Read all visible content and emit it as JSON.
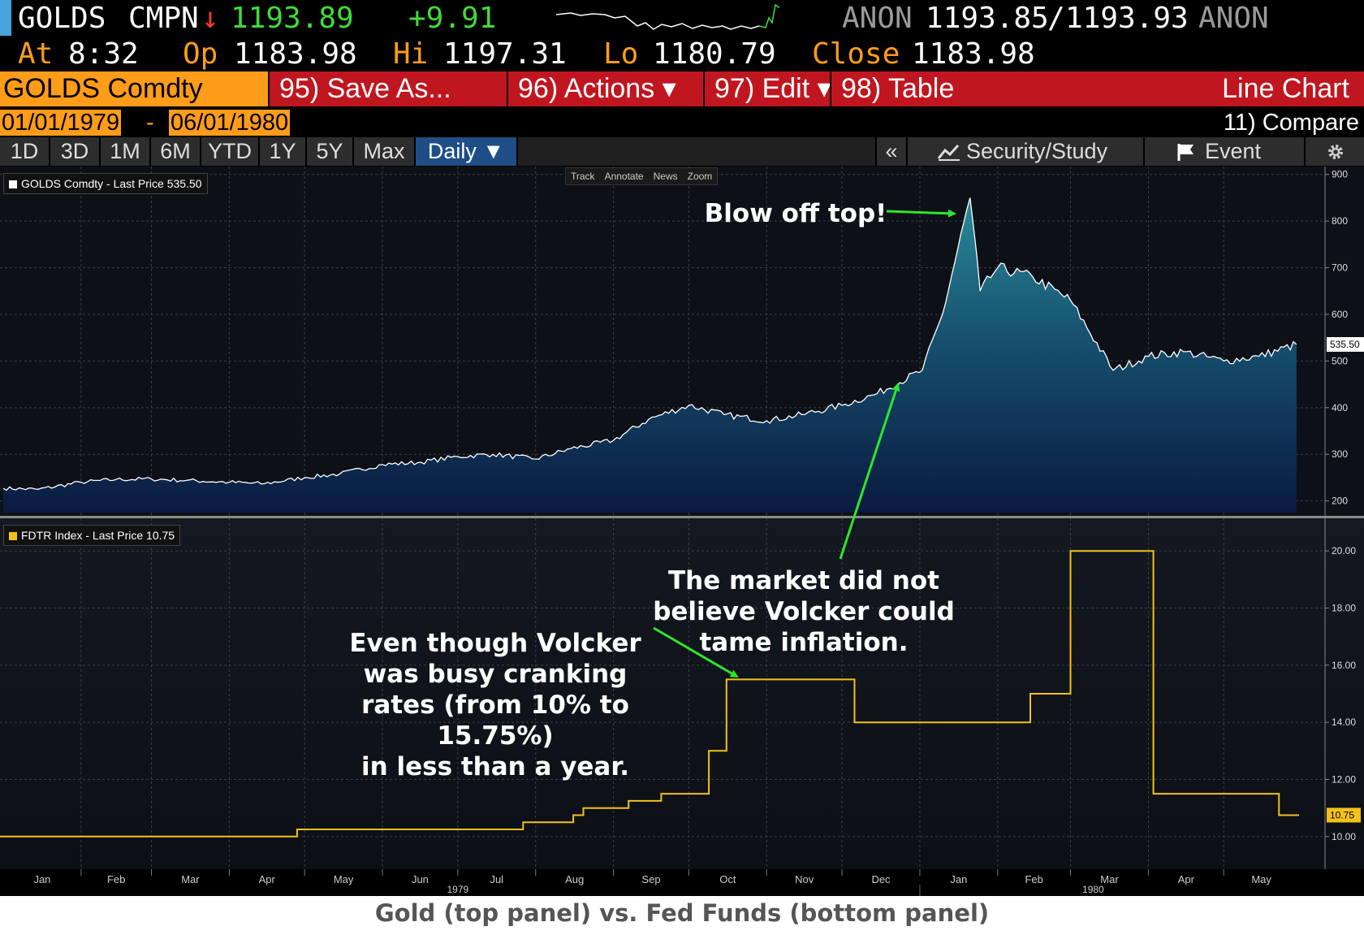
{
  "header": {
    "ticker": "GOLDS",
    "source": "CMPN",
    "arrow": "↓",
    "last": "1193.89",
    "change": "+9.91",
    "bid_label": "ANON",
    "bid": "1193.85",
    "slash": "/",
    "ask": "1193.93",
    "ask_label": "ANON",
    "at_label": "At",
    "time": "8:32",
    "op_label": "Op",
    "op": "1183.98",
    "hi_label": "Hi",
    "hi": "1197.31",
    "lo_label": "Lo",
    "lo": "1180.79",
    "close_label": "Close",
    "close": "1183.98"
  },
  "menu": {
    "security": "GOLDS Comdty",
    "save_as": "95) Save As...",
    "actions": "96) Actions ▾",
    "edit": "97) Edit ▾",
    "table": "98) Table",
    "chart_type": "Line Chart"
  },
  "range": {
    "start": "01/01/1979",
    "dash": "-",
    "end": "06/01/1980",
    "compare": "11) Compare"
  },
  "tabs": [
    "1D",
    "3D",
    "1M",
    "6M",
    "YTD",
    "1Y",
    "5Y",
    "Max"
  ],
  "period": "Daily ▼",
  "right_tabs": {
    "collapse": "«",
    "security_study": "Security/Study",
    "event": "Event",
    "settings_icon": "gear-icon",
    "chart_icon": "chart-icon",
    "flag_icon": "flag-icon"
  },
  "toolbar": [
    "Track",
    "Annotate",
    "News",
    "Zoom"
  ],
  "colors": {
    "gold_line": "#ffffff",
    "fed_line": "#f2c11a",
    "menu_red": "#c0161f",
    "accent_orange": "#ff9c1a",
    "annotation_arrow": "#2ee62e"
  },
  "chart_data": [
    {
      "type": "area",
      "legend": "GOLDS Comdty - Last Price 535.50",
      "last_value_label": "535.50",
      "yticks": [
        "900",
        "800",
        "700",
        "600",
        "500",
        "400",
        "300",
        "200"
      ],
      "ylim": [
        175,
        910
      ],
      "x": [
        "1979-01-01",
        "1979-01-15",
        "1979-02-01",
        "1979-02-15",
        "1979-03-01",
        "1979-03-15",
        "1979-04-01",
        "1979-04-15",
        "1979-05-01",
        "1979-05-15",
        "1979-06-01",
        "1979-06-15",
        "1979-07-01",
        "1979-07-15",
        "1979-08-01",
        "1979-08-15",
        "1979-09-01",
        "1979-09-15",
        "1979-10-01",
        "1979-10-15",
        "1979-11-01",
        "1979-11-15",
        "1979-12-01",
        "1979-12-15",
        "1980-01-02",
        "1980-01-10",
        "1980-01-21",
        "1980-01-25",
        "1980-02-01",
        "1980-02-15",
        "1980-03-01",
        "1980-03-18",
        "1980-04-01",
        "1980-04-15",
        "1980-05-01",
        "1980-05-15",
        "1980-05-30"
      ],
      "y": [
        227,
        225,
        240,
        246,
        247,
        244,
        240,
        237,
        250,
        258,
        278,
        282,
        295,
        300,
        290,
        312,
        330,
        375,
        405,
        385,
        372,
        385,
        405,
        430,
        480,
        600,
        850,
        650,
        700,
        680,
        630,
        480,
        510,
        520,
        500,
        510,
        535.5
      ]
    },
    {
      "type": "line",
      "step": true,
      "legend": "FDTR Index - Last Price 10.75",
      "last_value_label": "10.75",
      "yticks": [
        "20.00",
        "18.00",
        "16.00",
        "14.00",
        "12.00",
        "10.00"
      ],
      "ylim": [
        9.0,
        21.0
      ],
      "x": [
        "1979-01-01",
        "1979-04-28",
        "1979-07-20",
        "1979-07-27",
        "1979-08-16",
        "1979-08-20",
        "1979-09-07",
        "1979-09-20",
        "1979-10-09",
        "1979-10-16",
        "1979-12-06",
        "1980-02-14",
        "1980-03-01",
        "1980-04-03",
        "1980-05-23",
        "1980-05-31"
      ],
      "y": [
        10.0,
        10.25,
        10.25,
        10.5,
        10.75,
        11.0,
        11.25,
        11.5,
        13.0,
        15.5,
        14.0,
        15.0,
        20.0,
        11.5,
        10.75,
        10.75
      ],
      "xtick_labels": [
        "Jan",
        "Feb",
        "Mar",
        "Apr",
        "May",
        "Jun",
        "Jul",
        "Aug",
        "Sep",
        "Oct",
        "Nov",
        "Dec",
        "Jan",
        "Feb",
        "Mar",
        "Apr",
        "May"
      ],
      "year_labels": [
        "1979",
        "1980"
      ]
    }
  ],
  "annotations": {
    "blow_off": "Blow off top!",
    "market": [
      "The market did not",
      "believe Volcker could",
      "tame inflation."
    ],
    "volcker": [
      "Even though Volcker",
      "was busy cranking",
      "rates (from 10% to 15.75%)",
      "in less than a year."
    ]
  },
  "caption": "Gold (top panel) vs. Fed Funds (bottom panel)"
}
